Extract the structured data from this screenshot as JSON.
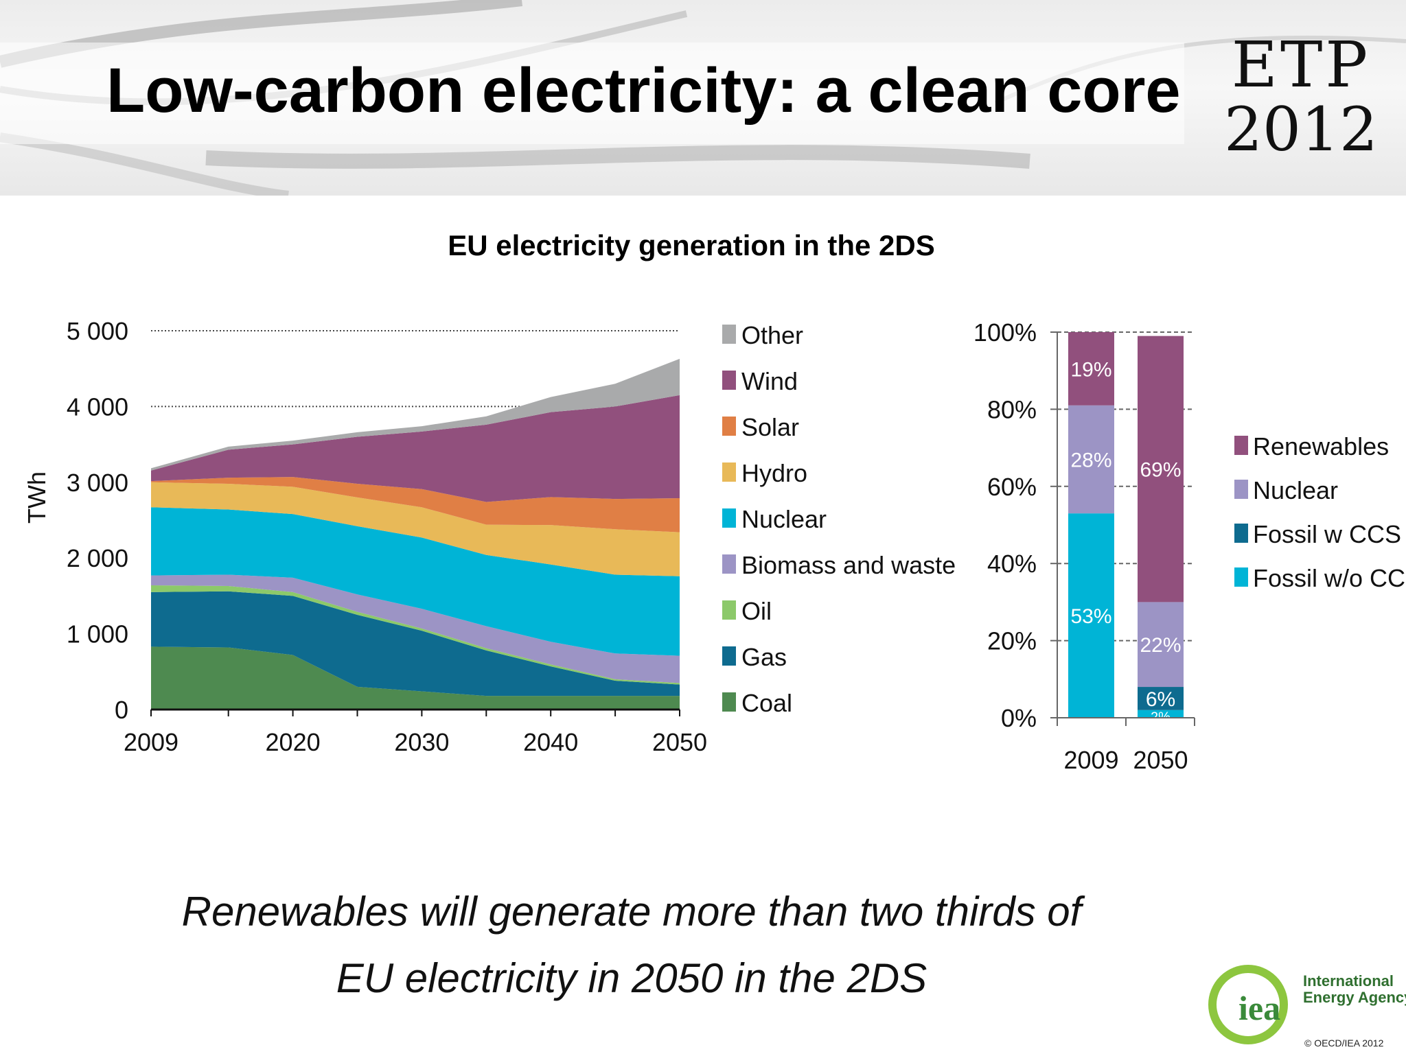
{
  "slide": {
    "title": "Low-carbon electricity: a clean core",
    "logo_line1": "ETP",
    "logo_line2": "2012",
    "chart_heading": "EU electricity generation in the 2DS",
    "caption_line1": "Renewables will generate more than two thirds of",
    "caption_line2": "EU electricity in 2050 in the 2DS",
    "iea_logo_text_line1": "International",
    "iea_logo_text_line2": "Energy Agency",
    "iea_logo_mark": "iea",
    "copyright": "© OECD/IEA 2012"
  },
  "chart_data": [
    {
      "type": "area",
      "stacked": true,
      "ylabel": "TWh",
      "ylim": [
        0,
        5000
      ],
      "yticks": [
        0,
        1000,
        2000,
        3000,
        4000,
        5000
      ],
      "ytick_labels": [
        "0",
        "1 000",
        "2 000",
        "3 000",
        "4 000",
        "5 000"
      ],
      "x": [
        2009,
        2015,
        2020,
        2025,
        2030,
        2035,
        2040,
        2045,
        2050
      ],
      "xticks": [
        2009,
        2020,
        2030,
        2040,
        2050
      ],
      "grid": "horizontal dotted at 4 000 and 5 000",
      "legend_position": "right",
      "series": [
        {
          "name": "Coal",
          "color": "#4e8a50",
          "values": [
            830,
            820,
            720,
            300,
            240,
            180,
            180,
            180,
            180
          ]
        },
        {
          "name": "Gas",
          "color": "#0e6b8f",
          "values": [
            720,
            740,
            780,
            950,
            800,
            600,
            390,
            200,
            150
          ]
        },
        {
          "name": "Oil",
          "color": "#8cc96a",
          "values": [
            90,
            70,
            50,
            40,
            30,
            30,
            25,
            20,
            20
          ]
        },
        {
          "name": "Biomass and waste",
          "color": "#9c94c5",
          "values": [
            130,
            150,
            190,
            230,
            260,
            290,
            300,
            340,
            360
          ]
        },
        {
          "name": "Nuclear",
          "color": "#00b4d6",
          "values": [
            900,
            860,
            840,
            900,
            940,
            940,
            1020,
            1040,
            1050
          ]
        },
        {
          "name": "Hydro",
          "color": "#e8b958",
          "values": [
            330,
            340,
            360,
            380,
            400,
            400,
            520,
            600,
            580
          ]
        },
        {
          "name": "Solar",
          "color": "#e07f45",
          "values": [
            15,
            80,
            130,
            180,
            240,
            300,
            370,
            400,
            450
          ]
        },
        {
          "name": "Wind",
          "color": "#91507d",
          "values": [
            140,
            370,
            430,
            620,
            760,
            1020,
            1120,
            1220,
            1360
          ]
        },
        {
          "name": "Other",
          "color": "#a9aaab",
          "values": [
            30,
            40,
            50,
            60,
            70,
            110,
            200,
            300,
            480
          ]
        }
      ]
    },
    {
      "type": "bar",
      "stacked": true,
      "categories": [
        "2009",
        "2050"
      ],
      "ylim": [
        0,
        100
      ],
      "ytick_labels": [
        "0%",
        "20%",
        "40%",
        "60%",
        "80%",
        "100%"
      ],
      "grid": "horizontal dashed",
      "legend_position": "right",
      "series": [
        {
          "name": "Fossil w/o CCS",
          "color": "#00b4d6",
          "values": [
            53,
            2
          ],
          "labels": [
            "53%",
            "2%"
          ]
        },
        {
          "name": "Fossil w CCS",
          "color": "#0e6b8f",
          "values": [
            0,
            6
          ],
          "labels": [
            "",
            "6%"
          ]
        },
        {
          "name": "Nuclear",
          "color": "#9c94c5",
          "values": [
            28,
            22
          ],
          "labels": [
            "28%",
            "22%"
          ]
        },
        {
          "name": "Renewables",
          "color": "#91507d",
          "values": [
            19,
            69
          ],
          "labels": [
            "19%",
            "69%"
          ]
        }
      ],
      "legend_order": [
        "Renewables",
        "Nuclear",
        "Fossil w CCS",
        "Fossil w/o CCS"
      ]
    }
  ]
}
